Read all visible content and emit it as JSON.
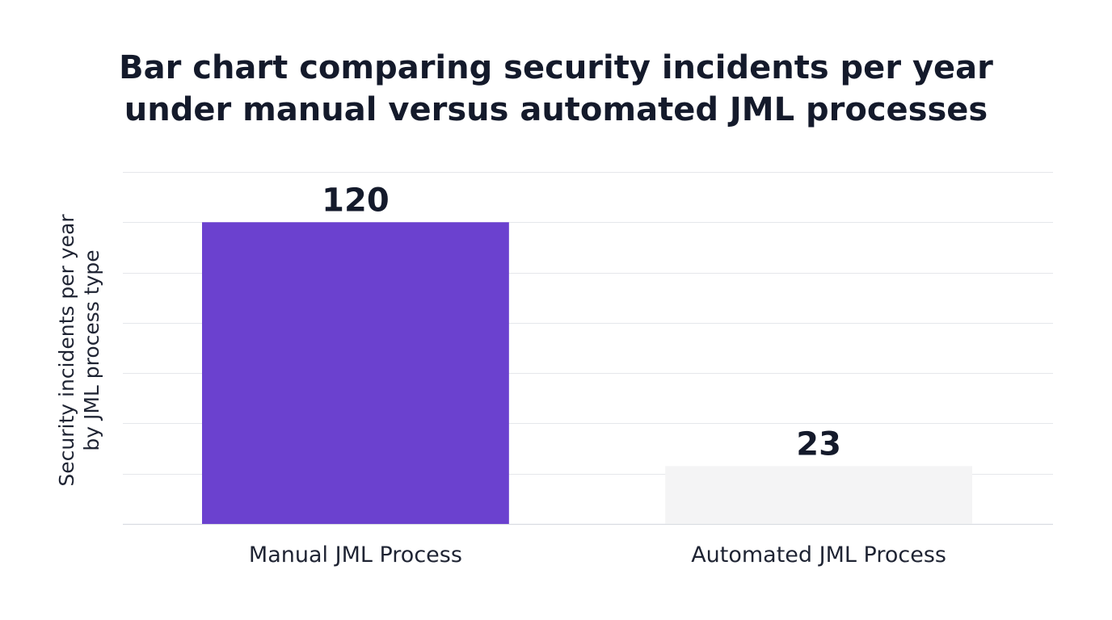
{
  "chart_data": {
    "type": "bar",
    "title_lines": [
      "Bar chart comparing security incidents per year",
      "under manual versus automated JML processes"
    ],
    "ylabel_lines": [
      "Security incidents per year",
      "by JML process type"
    ],
    "xlabel": "",
    "categories": [
      "Manual JML Process",
      "Automated JML Process"
    ],
    "values": [
      120,
      23
    ],
    "data_labels": [
      "120",
      "23"
    ],
    "ylim": [
      0,
      140
    ],
    "grid": true,
    "legend": "none",
    "colors": {
      "bars": [
        "#6b41cf",
        "#f4f4f5"
      ],
      "grid": "#e5e7eb",
      "baseline": "#d9dce1",
      "text": "#141a2b"
    }
  }
}
